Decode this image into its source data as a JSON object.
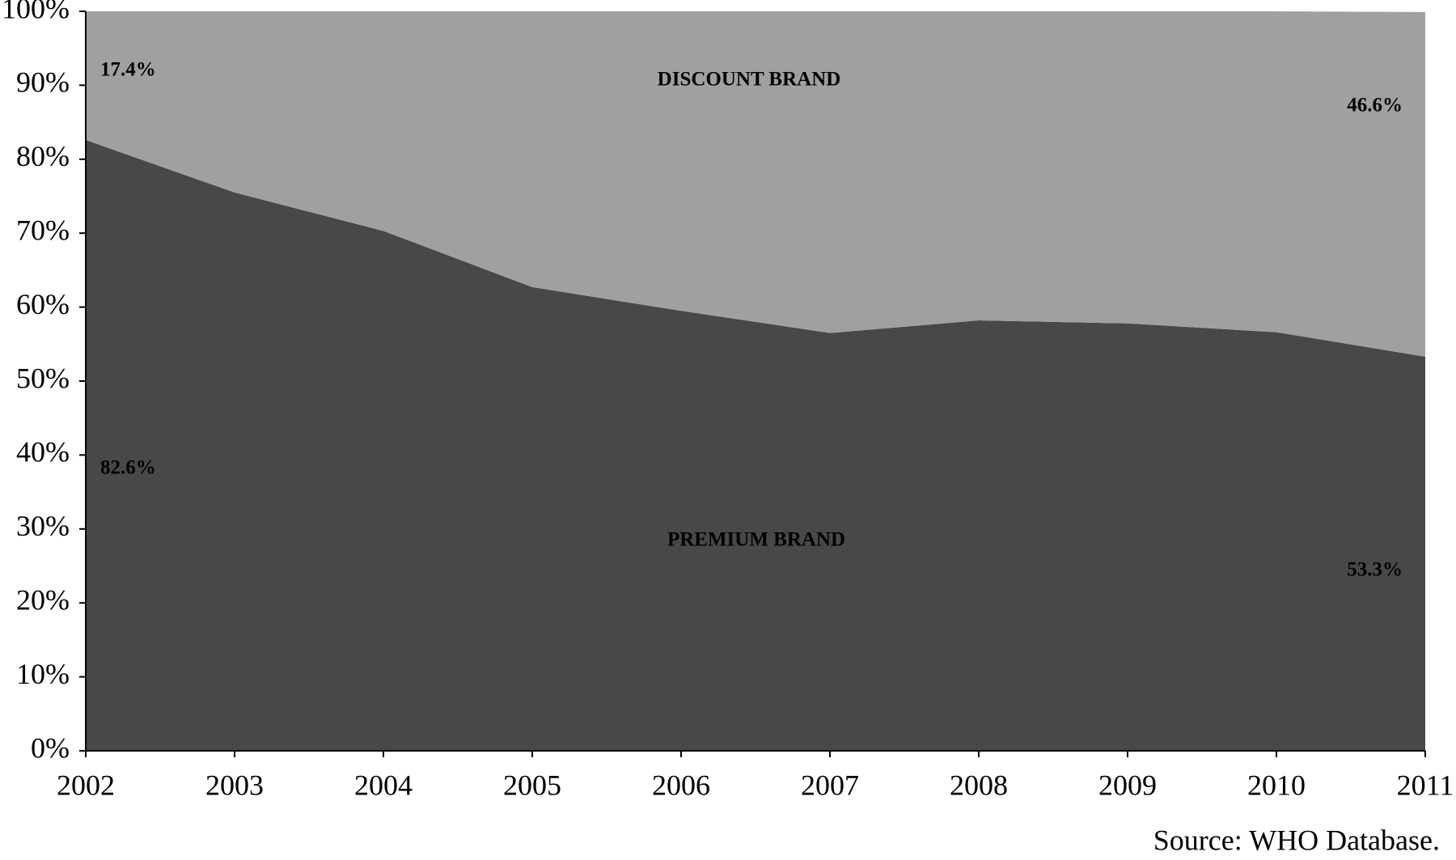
{
  "chart_data": {
    "type": "stacked_area",
    "categories": [
      "2002",
      "2003",
      "2004",
      "2005",
      "2006",
      "2007",
      "2008",
      "2009",
      "2010",
      "2011"
    ],
    "series": [
      {
        "name": "PREMIUM BRAND",
        "color": "#484848",
        "values": [
          82.6,
          75.5,
          70.3,
          62.7,
          59.5,
          56.5,
          58.2,
          57.8,
          56.6,
          53.3
        ],
        "value_labels": [
          "82.6%",
          null,
          null,
          null,
          null,
          null,
          null,
          null,
          null,
          "53.3%"
        ]
      },
      {
        "name": "DISCOUNT BRAND",
        "color": "#a0a0a0",
        "values": [
          17.4,
          24.5,
          29.7,
          37.3,
          40.5,
          43.5,
          41.8,
          42.2,
          43.4,
          46.6
        ],
        "value_labels": [
          "17.4%",
          null,
          null,
          null,
          null,
          null,
          null,
          null,
          null,
          "46.6%"
        ]
      }
    ],
    "ylim": [
      0,
      100
    ],
    "yticks": [
      {
        "value": 0,
        "label": "0%"
      },
      {
        "value": 10,
        "label": "10%"
      },
      {
        "value": 20,
        "label": "20%"
      },
      {
        "value": 30,
        "label": "30%"
      },
      {
        "value": 40,
        "label": "40%"
      },
      {
        "value": 50,
        "label": "50%"
      },
      {
        "value": 60,
        "label": "60%"
      },
      {
        "value": 70,
        "label": "70%"
      },
      {
        "value": 80,
        "label": "80%"
      },
      {
        "value": 90,
        "label": "90%"
      },
      {
        "value": 100,
        "label": "100%"
      }
    ],
    "source": "Source: WHO Database."
  }
}
